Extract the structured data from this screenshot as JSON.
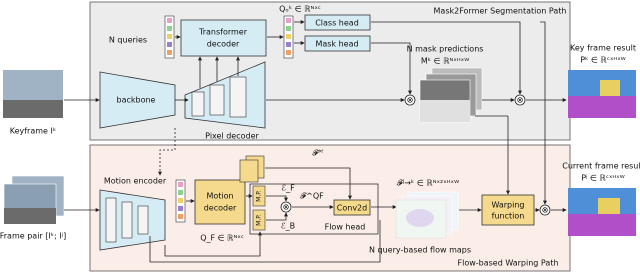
{
  "panels": {
    "top": "Mask2Former Segmentation Path",
    "bottom": "Flow-based Warping Path"
  },
  "top": {
    "queries": "N queries",
    "transformer_decoder": [
      "Transformer",
      "decoder"
    ],
    "query_output": "Qₒᵏ ∈ ℝᴺˣᶜ",
    "class_head": "Class head",
    "mask_head": "Mask head",
    "mask_predictions": "N mask predictions",
    "mask_shape": "Mᵏ ∈ ℝᴺˣᴴˣᵂ",
    "backbone": "backbone",
    "pixel_decoder": "Pixel decoder",
    "keyframe": "Keyframe Iᵏ",
    "key_result": "Key frame result",
    "key_result_shape": "Pᵏ ∈ ℝᶜˣᴴˣᵂ"
  },
  "bottom": {
    "motion_encoder": "Motion encoder",
    "motion_decoder": [
      "Motion",
      "decoder"
    ],
    "query_flow": "Q_F ∈ ℝᴺˣᶜ",
    "frame_pair": "Frame pair [Iᵏ; Iʲ]",
    "feature_pf": "𝓕ᴾᶠ",
    "e_f": "ℰ_F",
    "e_b": "ℰ_B",
    "feature_qf": "𝓕^QF",
    "mp_top": "M.P.",
    "mp_bottom": "M.P.",
    "conv2d": "Conv2d",
    "flow_head": "Flow head",
    "flow_shape": "𝓕ʲ→ᵏ ∈ ℝᴺˣ²ˣᴴˣᵂ",
    "flow_maps": "N query-based flow maps",
    "warping": [
      "Warping",
      "function"
    ],
    "current_result": "Current frame result",
    "current_result_shape": "Pʲ ∈ ℝᶜˣᴴˣᵂ"
  }
}
